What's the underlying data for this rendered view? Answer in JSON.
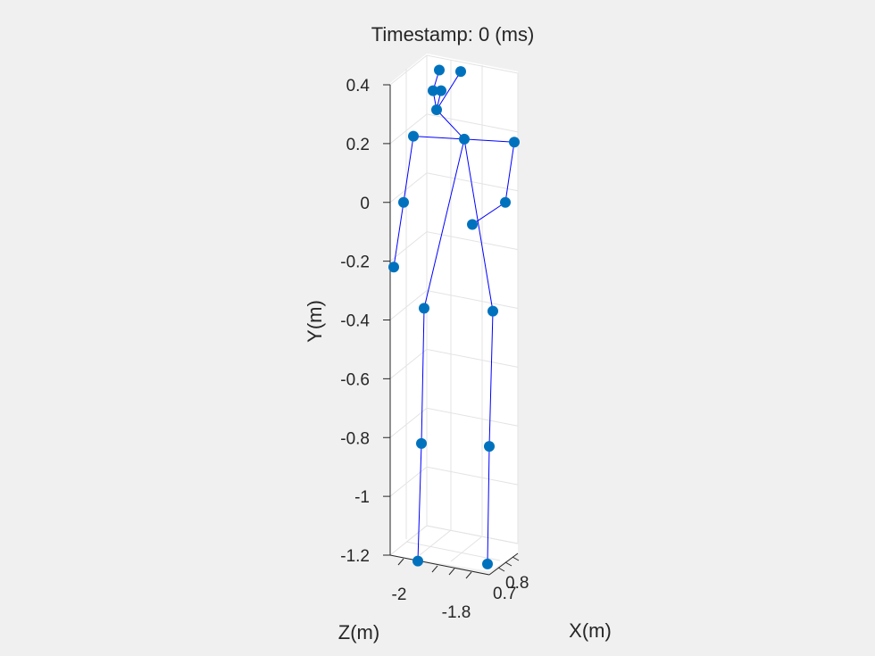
{
  "chart_data": {
    "type": "scatter",
    "title": "Timestamp: 0 (ms)",
    "xlabel": "X(m)",
    "ylabel": "Y(m)",
    "zlabel": "Z(m)",
    "projection": "3d",
    "grid": true,
    "y_ticks": [
      "0.4",
      "0.2",
      "0",
      "-0.2",
      "-0.4",
      "-0.6",
      "-0.8",
      "-1",
      "-1.2"
    ],
    "z_ticks": [
      "-2",
      "-1.8"
    ],
    "x_ticks": [
      "0.8",
      "0.7"
    ],
    "ylim": [
      -1.25,
      0.45
    ],
    "joints": [
      {
        "id": "head-left",
        "y": 0.45
      },
      {
        "id": "head-right",
        "y": 0.445
      },
      {
        "id": "head-mid-left",
        "y": 0.38
      },
      {
        "id": "head-mid-right",
        "y": 0.38
      },
      {
        "id": "neck",
        "y": 0.315
      },
      {
        "id": "spine-shoulder",
        "y": 0.215
      },
      {
        "id": "shoulder-left",
        "y": 0.225
      },
      {
        "id": "shoulder-right",
        "y": 0.205
      },
      {
        "id": "elbow-left",
        "y": 0.0
      },
      {
        "id": "elbow-right",
        "y": 0.0
      },
      {
        "id": "hand-left",
        "y": -0.22
      },
      {
        "id": "hand-right",
        "y": -0.075
      },
      {
        "id": "hip-left",
        "y": -0.36
      },
      {
        "id": "hip-right",
        "y": -0.37
      },
      {
        "id": "knee-left",
        "y": -0.82
      },
      {
        "id": "knee-right",
        "y": -0.83
      },
      {
        "id": "foot-left",
        "y": -1.22
      },
      {
        "id": "foot-right",
        "y": -1.23
      }
    ],
    "bones": [
      [
        "head-left",
        "head-mid-left"
      ],
      [
        "head-right",
        "neck"
      ],
      [
        "head-mid-left",
        "neck"
      ],
      [
        "head-mid-right",
        "neck"
      ],
      [
        "neck",
        "spine-shoulder"
      ],
      [
        "spine-shoulder",
        "shoulder-left"
      ],
      [
        "spine-shoulder",
        "shoulder-right"
      ],
      [
        "shoulder-left",
        "elbow-left"
      ],
      [
        "elbow-left",
        "hand-left"
      ],
      [
        "shoulder-right",
        "elbow-right"
      ],
      [
        "elbow-right",
        "hand-right"
      ],
      [
        "spine-shoulder",
        "hip-left"
      ],
      [
        "spine-shoulder",
        "hip-right"
      ],
      [
        "hip-left",
        "knee-left"
      ],
      [
        "knee-left",
        "foot-left"
      ],
      [
        "hip-right",
        "knee-right"
      ],
      [
        "knee-right",
        "foot-right"
      ]
    ],
    "marker_color": "#0072bd",
    "line_color": "#0000ff"
  }
}
